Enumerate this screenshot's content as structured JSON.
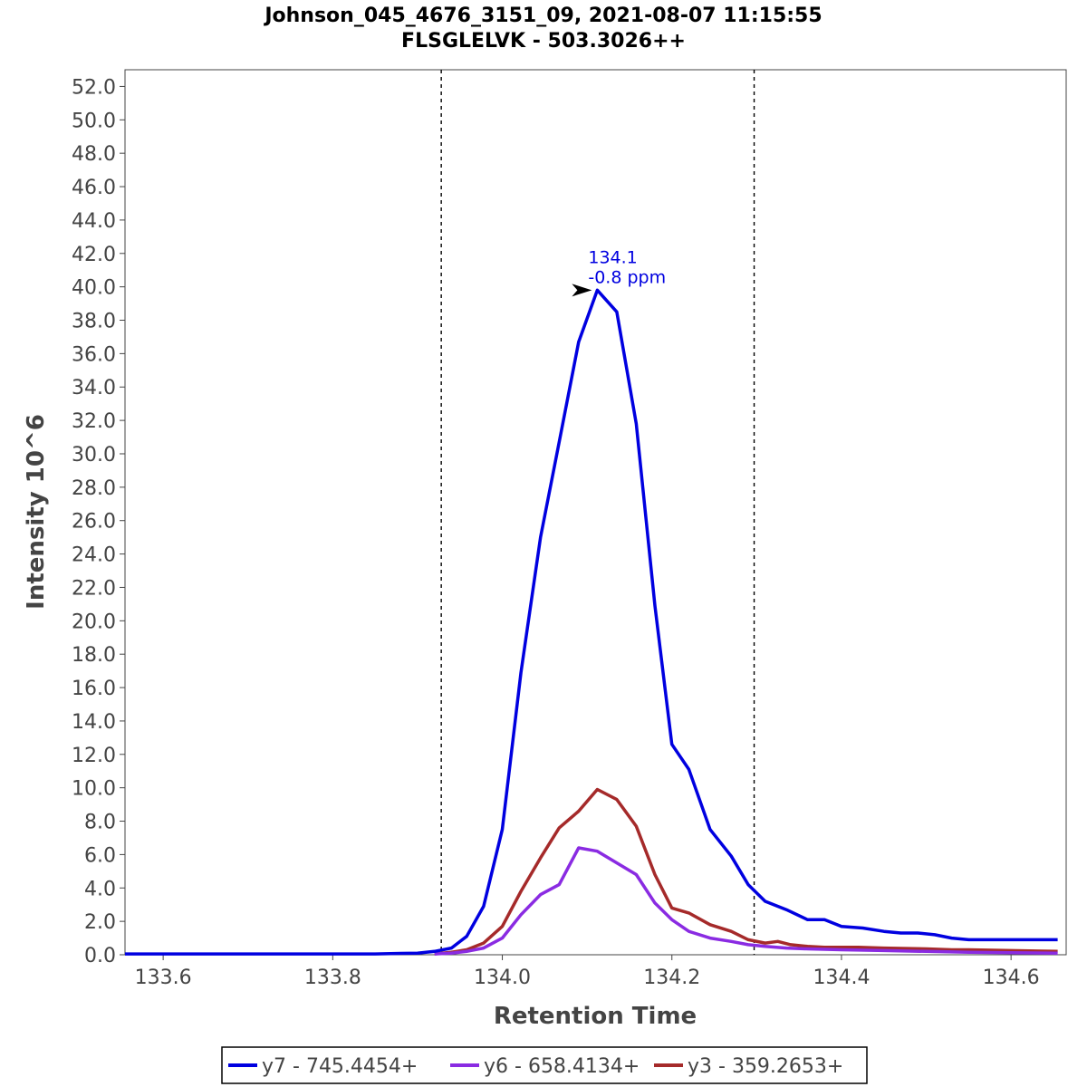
{
  "chart_data": {
    "type": "line",
    "title": "Johnson_045_4676_3151_09, 2021-08-07 11:15:55",
    "subtitle": "FLSGLELVK - 503.3026++",
    "xlabel": "Retention Time",
    "ylabel": "Intensity 10^6",
    "xlim": [
      133.555,
      134.665
    ],
    "ylim": [
      0,
      53
    ],
    "xticks": [
      "133.6",
      "133.8",
      "134.0",
      "134.2",
      "134.4",
      "134.6"
    ],
    "yticks": [
      "0.0",
      "2.0",
      "4.0",
      "6.0",
      "8.0",
      "10.0",
      "12.0",
      "14.0",
      "16.0",
      "18.0",
      "20.0",
      "22.0",
      "24.0",
      "26.0",
      "28.0",
      "30.0",
      "32.0",
      "34.0",
      "36.0",
      "38.0",
      "40.0",
      "42.0",
      "44.0",
      "46.0",
      "48.0",
      "50.0",
      "52.0"
    ],
    "grid": false,
    "legend_position": "bottom",
    "boundaries": [
      133.928,
      134.297
    ],
    "annotation": {
      "line1": "134.1",
      "line2": "-0.8 ppm",
      "x": 134.112,
      "y": 39.8
    },
    "series": [
      {
        "name": "y7 - 745.4454+",
        "color": "#0000e0",
        "x": [
          133.555,
          133.58,
          133.6,
          133.65,
          133.7,
          133.75,
          133.8,
          133.85,
          133.88,
          133.9,
          133.92,
          133.94,
          133.958,
          133.978,
          134.0,
          134.022,
          134.045,
          134.067,
          134.09,
          134.112,
          134.135,
          134.158,
          134.18,
          134.2,
          134.22,
          134.245,
          134.27,
          134.29,
          134.31,
          134.335,
          134.36,
          134.38,
          134.4,
          134.425,
          134.45,
          134.47,
          134.49,
          134.51,
          134.53,
          134.55,
          134.57,
          134.59,
          134.61,
          134.63,
          134.655
        ],
        "y": [
          0.05,
          0.05,
          0.05,
          0.05,
          0.05,
          0.05,
          0.05,
          0.05,
          0.08,
          0.1,
          0.2,
          0.4,
          1.1,
          2.9,
          7.5,
          16.9,
          25,
          30.7,
          36.7,
          39.8,
          38.5,
          31.8,
          20.9,
          12.6,
          11.1,
          7.5,
          5.9,
          4.2,
          3.2,
          2.7,
          2.1,
          2.1,
          1.7,
          1.6,
          1.4,
          1.3,
          1.3,
          1.2,
          1.0,
          0.9,
          0.9,
          0.9,
          0.9,
          0.9,
          0.9
        ]
      },
      {
        "name": "y6 - 658.4134+",
        "color": "#8a2be2",
        "x": [
          133.92,
          133.94,
          133.958,
          133.978,
          134.0,
          134.022,
          134.045,
          134.067,
          134.09,
          134.112,
          134.135,
          134.158,
          134.18,
          134.2,
          134.22,
          134.245,
          134.27,
          134.29,
          134.31,
          134.335,
          134.36,
          134.4,
          134.45,
          134.5,
          134.55,
          134.6,
          134.655
        ],
        "y": [
          0.05,
          0.1,
          0.2,
          0.4,
          1.0,
          2.4,
          3.6,
          4.2,
          6.4,
          6.2,
          5.5,
          4.8,
          3.1,
          2.1,
          1.4,
          1.0,
          0.8,
          0.6,
          0.5,
          0.4,
          0.35,
          0.3,
          0.25,
          0.2,
          0.15,
          0.12,
          0.1
        ]
      },
      {
        "name": "y3 - 359.2653+",
        "color": "#a52a2a",
        "x": [
          133.92,
          133.94,
          133.958,
          133.978,
          134.0,
          134.022,
          134.045,
          134.067,
          134.09,
          134.112,
          134.135,
          134.158,
          134.18,
          134.2,
          134.22,
          134.245,
          134.27,
          134.29,
          134.31,
          134.325,
          134.34,
          134.36,
          134.38,
          134.4,
          134.42,
          134.45,
          134.5,
          134.53,
          134.55,
          134.6,
          134.655
        ],
        "y": [
          0.05,
          0.15,
          0.3,
          0.7,
          1.7,
          3.8,
          5.8,
          7.6,
          8.6,
          9.9,
          9.3,
          7.7,
          4.8,
          2.8,
          2.5,
          1.8,
          1.4,
          0.9,
          0.7,
          0.8,
          0.6,
          0.5,
          0.45,
          0.45,
          0.45,
          0.4,
          0.35,
          0.3,
          0.3,
          0.25,
          0.2
        ]
      }
    ]
  }
}
